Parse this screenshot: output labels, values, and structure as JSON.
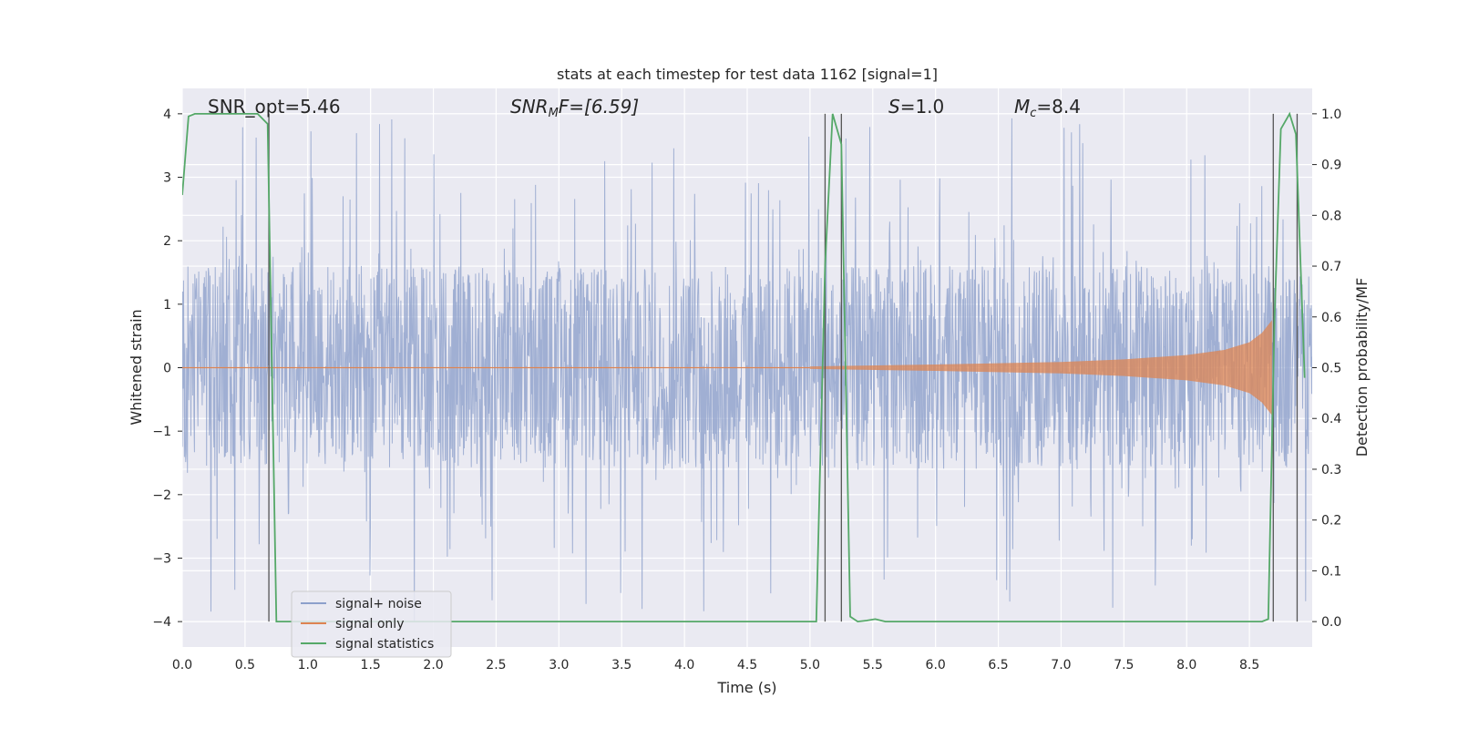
{
  "chart_data": {
    "type": "line",
    "title": "stats at each timestep for test data 1162 [signal=1]",
    "xlabel": "Time (s)",
    "ylabel_left": "Whitened strain",
    "ylabel_right": "Detection probability/MF",
    "xlim": [
      0.0,
      9.0
    ],
    "ylim_left": [
      -4.4,
      4.4
    ],
    "ylim_right": [
      -0.05,
      1.05
    ],
    "x_ticks": [
      "0.0",
      "0.5",
      "1.0",
      "1.5",
      "2.0",
      "2.5",
      "3.0",
      "3.5",
      "4.0",
      "4.5",
      "5.0",
      "5.5",
      "6.0",
      "6.5",
      "7.0",
      "7.5",
      "8.0",
      "8.5"
    ],
    "y_ticks_left": [
      "−4",
      "−3",
      "−2",
      "−1",
      "0",
      "1",
      "2",
      "3",
      "4"
    ],
    "y_ticks_right": [
      "0.0",
      "0.1",
      "0.2",
      "0.3",
      "0.4",
      "0.5",
      "0.6",
      "0.7",
      "0.8",
      "0.9",
      "1.0"
    ],
    "grid": true,
    "legend_position": "lower-left",
    "annotations": {
      "snr_opt": "SNR_opt=5.46",
      "snr_mf_label": "SNR",
      "snr_mf_sub": "M",
      "snr_mf_rest": "F=[6.59]",
      "s_label": "S",
      "s_rest": "=1.0",
      "mc_label": "M",
      "mc_sub": "c",
      "mc_rest": "=8.4"
    },
    "series": [
      {
        "name": "signal+ noise",
        "color": "#8da0cb",
        "description_stats": {
          "core_amplitude": 1.6,
          "peak_max": 4.0,
          "peak_min": -4.0
        }
      },
      {
        "name": "signal only",
        "color": "#dd8452",
        "envelope": [
          [
            5.0,
            0.02
          ],
          [
            6.0,
            0.05
          ],
          [
            7.0,
            0.09
          ],
          [
            7.5,
            0.13
          ],
          [
            8.0,
            0.2
          ],
          [
            8.3,
            0.28
          ],
          [
            8.5,
            0.4
          ],
          [
            8.6,
            0.55
          ],
          [
            8.68,
            0.75
          ]
        ]
      },
      {
        "name": "signal statistics",
        "color": "#55a868",
        "axis": "right",
        "x": [
          0.0,
          0.05,
          0.1,
          0.2,
          0.3,
          0.4,
          0.5,
          0.6,
          0.68,
          0.75,
          0.8,
          0.9,
          1.5,
          2.5,
          3.5,
          4.5,
          5.0,
          5.05,
          5.12,
          5.18,
          5.25,
          5.32,
          5.38,
          5.45,
          5.52,
          5.6,
          6.0,
          7.0,
          8.0,
          8.6,
          8.65,
          8.7,
          8.75,
          8.82,
          8.87,
          8.94
        ],
        "y": [
          0.84,
          0.995,
          1.0,
          1.0,
          1.0,
          1.0,
          1.0,
          1.0,
          0.98,
          0.0,
          0.0,
          0.0,
          0.0,
          0.0,
          0.0,
          0.0,
          0.0,
          0.0,
          0.7,
          1.0,
          0.94,
          0.01,
          0.0,
          0.002,
          0.005,
          0.0,
          0.0,
          0.0,
          0.0,
          0.0,
          0.005,
          0.6,
          0.97,
          1.0,
          0.96,
          0.48
        ]
      }
    ],
    "vertical_lines": [
      0.69,
      5.12,
      5.25,
      8.69,
      8.88
    ]
  }
}
